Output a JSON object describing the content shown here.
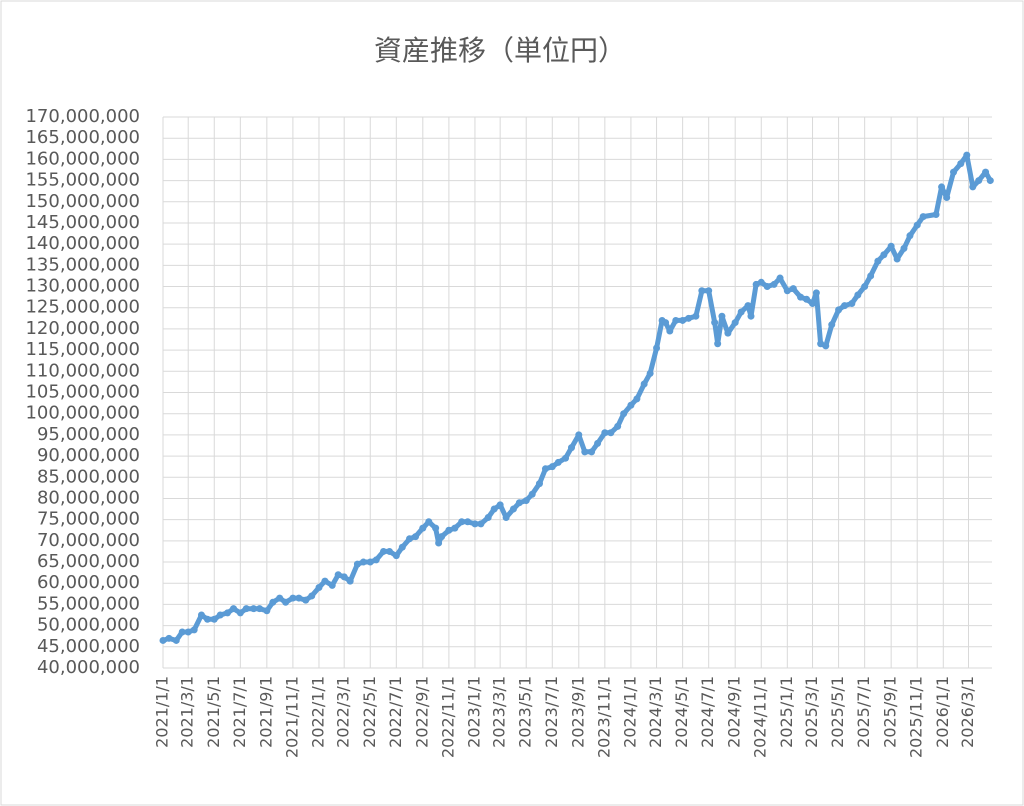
{
  "chart_data": {
    "type": "line",
    "title": "資産推移（単位円）",
    "x": [
      "2021/1/1",
      "2021/1/15",
      "2021/2/1",
      "2021/2/15",
      "2021/3/1",
      "2021/3/15",
      "2021/4/1",
      "2021/4/15",
      "2021/5/1",
      "2021/5/15",
      "2021/6/1",
      "2021/6/15",
      "2021/7/1",
      "2021/7/15",
      "2021/8/1",
      "2021/8/15",
      "2021/9/1",
      "2021/9/15",
      "2021/10/1",
      "2021/10/15",
      "2021/11/1",
      "2021/11/15",
      "2021/12/1",
      "2021/12/15",
      "2022/1/1",
      "2022/1/15",
      "2022/2/1",
      "2022/2/15",
      "2022/3/1",
      "2022/3/15",
      "2022/4/1",
      "2022/4/15",
      "2022/5/1",
      "2022/5/15",
      "2022/6/1",
      "2022/6/15",
      "2022/7/1",
      "2022/7/15",
      "2022/8/1",
      "2022/8/15",
      "2022/9/1",
      "2022/9/15",
      "2022/10/1",
      "2022/10/8",
      "2022/10/15",
      "2022/11/1",
      "2022/11/15",
      "2022/12/1",
      "2022/12/15",
      "2023/1/1",
      "2023/1/15",
      "2023/2/1",
      "2023/2/15",
      "2023/3/1",
      "2023/3/15",
      "2023/4/1",
      "2023/4/15",
      "2023/5/1",
      "2023/5/15",
      "2023/6/1",
      "2023/6/15",
      "2023/7/1",
      "2023/7/15",
      "2023/8/1",
      "2023/8/15",
      "2023/9/1",
      "2023/9/15",
      "2023/10/1",
      "2023/10/15",
      "2023/11/1",
      "2023/11/15",
      "2023/12/1",
      "2023/12/15",
      "2024/1/1",
      "2024/1/15",
      "2024/2/1",
      "2024/2/15",
      "2024/3/1",
      "2024/3/14",
      "2024/3/22",
      "2024/4/1",
      "2024/4/15",
      "2024/5/1",
      "2024/5/15",
      "2024/6/1",
      "2024/6/15",
      "2024/7/1",
      "2024/7/15",
      "2024/7/22",
      "2024/8/1",
      "2024/8/15",
      "2024/9/1",
      "2024/9/15",
      "2024/10/1",
      "2024/10/8",
      "2024/10/20",
      "2024/11/1",
      "2024/11/15",
      "2024/12/1",
      "2024/12/15",
      "2025/1/1",
      "2025/1/15",
      "2025/2/1",
      "2025/2/15",
      "2025/3/1",
      "2025/3/10",
      "2025/3/20",
      "2025/4/1",
      "2025/4/15",
      "2025/5/1",
      "2025/5/15",
      "2025/6/1",
      "2025/6/15",
      "2025/7/1",
      "2025/7/15",
      "2025/8/1",
      "2025/8/15",
      "2025/9/1",
      "2025/9/15",
      "2025/10/1",
      "2025/10/15",
      "2025/11/1",
      "2025/11/15",
      "2025/12/15",
      "2025/12/28",
      "2026/1/9",
      "2026/1/25",
      "2026/2/11",
      "2026/2/25",
      "2026/3/11",
      "2026/3/25",
      "2026/4/10",
      "2026/4/21"
    ],
    "values": [
      46500000,
      47000000,
      46500000,
      48500000,
      48500000,
      49000000,
      52500000,
      51500000,
      51500000,
      52500000,
      53000000,
      54000000,
      53000000,
      54000000,
      54000000,
      54000000,
      53500000,
      55500000,
      56500000,
      55500000,
      56500000,
      56500000,
      56000000,
      57000000,
      59000000,
      60500000,
      59500000,
      62000000,
      61500000,
      60500000,
      64500000,
      65000000,
      65000000,
      65500000,
      67500000,
      67500000,
      66500000,
      68500000,
      70500000,
      71000000,
      73000000,
      74500000,
      73000000,
      69500000,
      71000000,
      72500000,
      73000000,
      74500000,
      74500000,
      74000000,
      74000000,
      75500000,
      77500000,
      78500000,
      75500000,
      77500000,
      79000000,
      79500000,
      81000000,
      83500000,
      87000000,
      87500000,
      88500000,
      89500000,
      92000000,
      95000000,
      91000000,
      91000000,
      93000000,
      95500000,
      95500000,
      97000000,
      100000000,
      102000000,
      103500000,
      107000000,
      109500000,
      115500000,
      122000000,
      121500000,
      119500000,
      122000000,
      122000000,
      122500000,
      123000000,
      129000000,
      129000000,
      121500000,
      116500000,
      123000000,
      119000000,
      121500000,
      124000000,
      125500000,
      123000000,
      130500000,
      131000000,
      130000000,
      130500000,
      132000000,
      129000000,
      129500000,
      127500000,
      127000000,
      126000000,
      128500000,
      116500000,
      116000000,
      121000000,
      124500000,
      125500000,
      126000000,
      128000000,
      130000000,
      132500000,
      136000000,
      137500000,
      139500000,
      136500000,
      139000000,
      142000000,
      144500000,
      146500000,
      147000000,
      153500000,
      151000000,
      157000000,
      159000000,
      161000000,
      153500000,
      155000000,
      157000000,
      155000000
    ],
    "color": "#5b9bd5",
    "xlim": [
      "2021/1/1",
      "2026/4/25"
    ],
    "xticks": [
      "2021/1/1",
      "2021/3/1",
      "2021/5/1",
      "2021/7/1",
      "2021/9/1",
      "2021/11/1",
      "2022/1/1",
      "2022/3/1",
      "2022/5/1",
      "2022/7/1",
      "2022/9/1",
      "2022/11/1",
      "2023/1/1",
      "2023/3/1",
      "2023/5/1",
      "2023/7/1",
      "2023/9/1",
      "2023/11/1",
      "2024/1/1",
      "2024/3/1",
      "2024/5/1",
      "2024/7/1",
      "2024/9/1",
      "2024/11/1",
      "2025/1/1",
      "2025/3/1",
      "2025/5/1",
      "2025/7/1",
      "2025/9/1",
      "2025/11/1",
      "2026/1/1",
      "2026/3/1"
    ],
    "ylim": [
      40000000,
      170000000
    ],
    "yticks": [
      {
        "value": 40000000,
        "label": "40,000,000"
      },
      {
        "value": 45000000,
        "label": "45,000,000"
      },
      {
        "value": 50000000,
        "label": "50,000,000"
      },
      {
        "value": 55000000,
        "label": "55,000,000"
      },
      {
        "value": 60000000,
        "label": "60,000,000"
      },
      {
        "value": 65000000,
        "label": "65,000,000"
      },
      {
        "value": 70000000,
        "label": "70,000,000"
      },
      {
        "value": 75000000,
        "label": "75,000,000"
      },
      {
        "value": 80000000,
        "label": "80,000,000"
      },
      {
        "value": 85000000,
        "label": "85,000,000"
      },
      {
        "value": 90000000,
        "label": "90,000,000"
      },
      {
        "value": 95000000,
        "label": "95,000,000"
      },
      {
        "value": 100000000,
        "label": "100,000,000"
      },
      {
        "value": 105000000,
        "label": "105,000,000"
      },
      {
        "value": 110000000,
        "label": "110,000,000"
      },
      {
        "value": 115000000,
        "label": "115,000,000"
      },
      {
        "value": 120000000,
        "label": "120,000,000"
      },
      {
        "value": 125000000,
        "label": "125,000,000"
      },
      {
        "value": 130000000,
        "label": "130,000,000"
      },
      {
        "value": 135000000,
        "label": "135,000,000"
      },
      {
        "value": 140000000,
        "label": "140,000,000"
      },
      {
        "value": 145000000,
        "label": "145,000,000"
      },
      {
        "value": 150000000,
        "label": "150,000,000"
      },
      {
        "value": 155000000,
        "label": "155,000,000"
      },
      {
        "value": 160000000,
        "label": "160,000,000"
      },
      {
        "value": 165000000,
        "label": "165,000,000"
      },
      {
        "value": 170000000,
        "label": "170,000,000"
      }
    ],
    "grid": true
  }
}
